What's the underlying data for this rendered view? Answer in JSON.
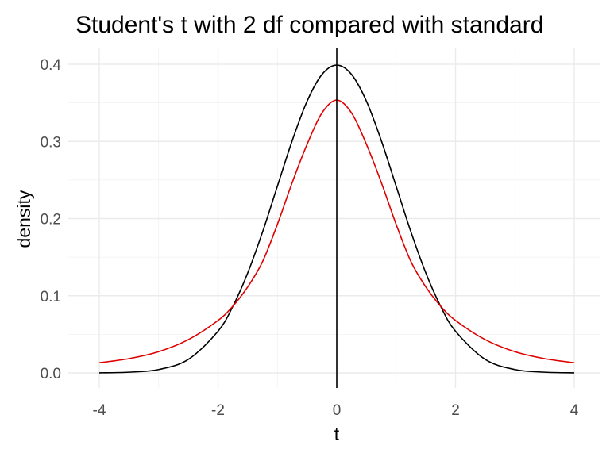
{
  "chart_data": {
    "type": "line",
    "title": "Student's t with 2 df compared with standard",
    "xlabel": "t",
    "ylabel": "density",
    "xlim": [
      -4,
      4
    ],
    "ylim": [
      0,
      0.4
    ],
    "x_ticks": [
      -4,
      -2,
      0,
      2,
      4
    ],
    "x_tick_labels": [
      "-4",
      "-2",
      "0",
      "2",
      "4"
    ],
    "y_ticks": [
      0.0,
      0.1,
      0.2,
      0.3,
      0.4
    ],
    "y_tick_labels": [
      "0.0",
      "0.1",
      "0.2",
      "0.3",
      "0.4"
    ],
    "grid": true,
    "legend": "none",
    "vline_x": 0,
    "series": [
      {
        "color": "#000000",
        "x": [
          -4,
          -3.5,
          -3,
          -2.5,
          -2,
          -1.75,
          -1.5,
          -1.25,
          -1,
          -0.75,
          -0.5,
          -0.25,
          0,
          0.25,
          0.5,
          0.75,
          1,
          1.25,
          1.5,
          1.75,
          2,
          2.5,
          3,
          3.5,
          4
        ],
        "values": [
          0.0001,
          0.0009,
          0.0044,
          0.0175,
          0.054,
          0.0863,
          0.1295,
          0.1826,
          0.242,
          0.3011,
          0.3521,
          0.3867,
          0.3989,
          0.3867,
          0.3521,
          0.3011,
          0.242,
          0.1826,
          0.1295,
          0.0863,
          0.054,
          0.0175,
          0.0044,
          0.0009,
          0.0001
        ]
      },
      {
        "color": "#e00000",
        "x": [
          -4,
          -3.5,
          -3,
          -2.5,
          -2,
          -1.75,
          -1.5,
          -1.25,
          -1,
          -0.75,
          -0.5,
          -0.25,
          0,
          0.25,
          0.5,
          0.75,
          1,
          1.25,
          1.5,
          1.75,
          2,
          2.5,
          3,
          3.5,
          4
        ],
        "values": [
          0.0131,
          0.0185,
          0.0275,
          0.0431,
          0.068,
          0.0865,
          0.1114,
          0.1442,
          0.1925,
          0.2468,
          0.2962,
          0.3368,
          0.3536,
          0.3368,
          0.2962,
          0.2468,
          0.1925,
          0.1442,
          0.1114,
          0.0865,
          0.068,
          0.0431,
          0.0275,
          0.0185,
          0.0131
        ]
      }
    ]
  }
}
